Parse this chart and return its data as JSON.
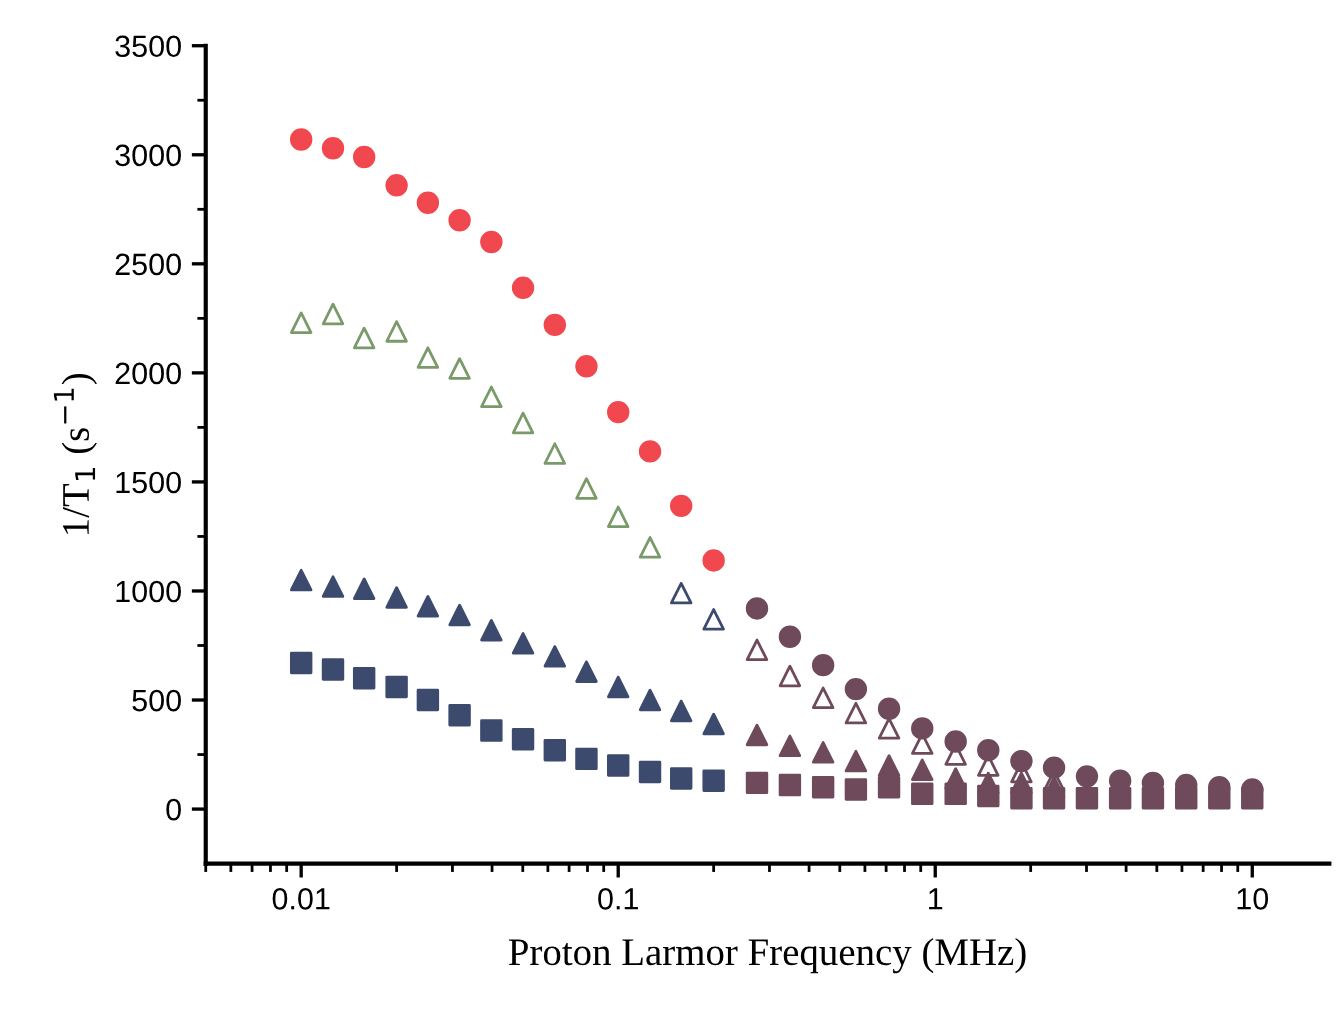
{
  "chart_data": {
    "type": "scatter",
    "xlabel": "Proton Larmor Frequency (MHz)",
    "ylabel": "1/T$_{1}$ (s$^{−1}$)",
    "log": "x",
    "xlim": [
      0.005,
      17.5
    ],
    "xticks": [
      0.01,
      0.1,
      1,
      10
    ],
    "ylim": [
      -250,
      3500
    ],
    "yticks": [
      0,
      500,
      1000,
      1500,
      2000,
      2500,
      3000,
      3500
    ],
    "grid": false,
    "series": [
      {
        "color": "#f0484e",
        "marker": "circle",
        "x": [
          0.01,
          0.0126,
          0.0158,
          0.02,
          0.0251,
          0.0316,
          0.0398,
          0.0501,
          0.0631,
          0.0794,
          0.1,
          0.126,
          0.158,
          0.2
        ],
        "values": [
          3070,
          3030,
          2990,
          2860,
          2780,
          2700,
          2600,
          2390,
          2220,
          2030,
          1820,
          1640,
          1390,
          1140
        ]
      },
      {
        "color": "#7a9a6a",
        "marker": "triangle-open",
        "x": [
          0.01,
          0.0126,
          0.0158,
          0.02,
          0.0251,
          0.0316,
          0.0398,
          0.0501,
          0.0631,
          0.0794,
          0.1,
          0.126
        ],
        "values": [
          2230,
          2270,
          2160,
          2190,
          2070,
          2020,
          1890,
          1770,
          1630,
          1470,
          1340,
          1200
        ]
      },
      {
        "color": "#3c4a6e",
        "marker": "triangle-open",
        "x": [
          0.158,
          0.2
        ],
        "values": [
          990,
          870
        ]
      },
      {
        "color": "#3c4a6e",
        "marker": "triangle",
        "x": [
          0.01,
          0.0126,
          0.0158,
          0.02,
          0.0251,
          0.0316,
          0.0398,
          0.0501,
          0.0631,
          0.0794,
          0.1,
          0.126,
          0.158,
          0.2
        ],
        "values": [
          1050,
          1020,
          1010,
          970,
          930,
          890,
          820,
          760,
          700,
          630,
          560,
          500,
          450,
          390
        ]
      },
      {
        "color": "#3c4a6e",
        "marker": "square",
        "x": [
          0.01,
          0.0126,
          0.0158,
          0.02,
          0.0251,
          0.0316,
          0.0398,
          0.0501,
          0.0631,
          0.0794,
          0.1,
          0.126,
          0.158,
          0.2
        ],
        "values": [
          670,
          640,
          600,
          560,
          500,
          430,
          360,
          320,
          270,
          230,
          200,
          170,
          140,
          130
        ]
      },
      {
        "color": "#6e4a5a",
        "marker": "square",
        "x": [
          0.274,
          0.348,
          0.443,
          0.562,
          0.715,
          0.91,
          1.16,
          1.47,
          1.87,
          2.37,
          3.01,
          3.83,
          4.86,
          6.19,
          7.87,
          10.0
        ],
        "values": [
          120,
          110,
          100,
          90,
          100,
          70,
          70,
          60,
          50,
          50,
          50,
          50,
          50,
          50,
          50,
          50
        ]
      },
      {
        "color": "#6e4a5a",
        "marker": "triangle",
        "x": [
          0.274,
          0.348,
          0.443,
          0.562,
          0.715,
          0.91,
          1.16,
          1.47,
          1.87,
          2.37
        ],
        "values": [
          340,
          290,
          260,
          220,
          200,
          180,
          140,
          120,
          120,
          100
        ]
      },
      {
        "color": "#6e4a5a",
        "marker": "triangle-open",
        "x": [
          0.274,
          0.348,
          0.443,
          0.562,
          0.715,
          0.91,
          1.16,
          1.47,
          1.87,
          2.37
        ],
        "values": [
          730,
          610,
          510,
          440,
          370,
          300,
          250,
          200,
          170,
          130
        ]
      },
      {
        "color": "#6e4a5a",
        "marker": "circle",
        "x": [
          0.274,
          0.348,
          0.443,
          0.562,
          0.715,
          0.91,
          1.16,
          1.47,
          1.87,
          2.37,
          3.01,
          3.83,
          4.86,
          6.19,
          7.87,
          10.0
        ],
        "values": [
          920,
          790,
          660,
          550,
          460,
          370,
          310,
          270,
          220,
          190,
          150,
          130,
          120,
          110,
          100,
          90
        ]
      }
    ]
  }
}
